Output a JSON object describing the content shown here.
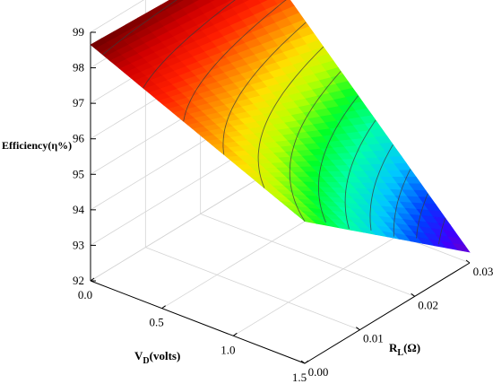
{
  "chart_data": {
    "type": "surface",
    "z_label": "Efficiency(η%)",
    "x_label": {
      "main": "V",
      "sub": "D",
      "rest": "(volts)"
    },
    "y_label": {
      "main": "R",
      "sub": "L",
      "rest": "(Ω)"
    },
    "z_ticks": [
      "92",
      "93",
      "94",
      "95",
      "96",
      "97",
      "98",
      "99"
    ],
    "x_ticks": [
      "0.0",
      "0.5",
      "1.0",
      "1.5"
    ],
    "y_ticks": [
      "0.00",
      "0.01",
      "0.02",
      "0.03"
    ],
    "zlim": [
      92,
      99
    ],
    "xlim": [
      0,
      1.5
    ],
    "ylim": [
      0,
      0.03
    ],
    "grid": true,
    "colormap": "rainbow",
    "x": [
      0.0,
      1.5
    ],
    "y": [
      0.0,
      0.03
    ],
    "z": [
      [
        98.65,
        98.45
      ],
      [
        96.0,
        92.3
      ]
    ],
    "contour_levels": [
      93.0,
      93.5,
      94.0,
      94.5,
      95.0,
      95.5,
      96.0,
      96.5,
      97.0,
      97.5,
      98.0,
      98.5
    ]
  }
}
